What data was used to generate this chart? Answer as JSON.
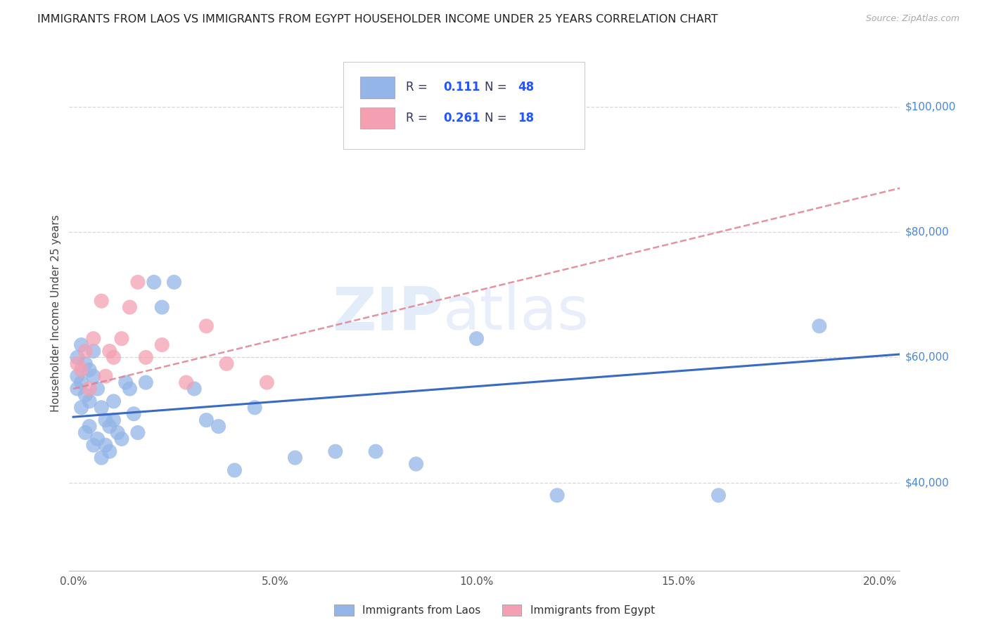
{
  "title": "IMMIGRANTS FROM LAOS VS IMMIGRANTS FROM EGYPT HOUSEHOLDER INCOME UNDER 25 YEARS CORRELATION CHART",
  "source": "Source: ZipAtlas.com",
  "xlabel_ticks": [
    "0.0%",
    "5.0%",
    "10.0%",
    "15.0%",
    "20.0%"
  ],
  "xlabel_tick_vals": [
    0.0,
    0.05,
    0.1,
    0.15,
    0.2
  ],
  "ylabel": "Householder Income Under 25 years",
  "ylabel_labels": [
    "$40,000",
    "$60,000",
    "$80,000",
    "$100,000"
  ],
  "ylabel_vals": [
    40000,
    60000,
    80000,
    100000
  ],
  "xlim": [
    -0.001,
    0.205
  ],
  "ylim": [
    26000,
    108000
  ],
  "laos_R": "0.111",
  "laos_N": "48",
  "egypt_R": "0.261",
  "egypt_N": "18",
  "laos_color": "#93b5e8",
  "egypt_color": "#f4a0b2",
  "laos_line_color": "#3a6bc4",
  "egypt_line_color": "#e08090",
  "watermark": "ZIPatlas",
  "legend_label_laos": "Immigrants from Laos",
  "legend_label_egypt": "Immigrants from Egypt",
  "background_color": "#ffffff",
  "grid_color": "#d8d8d8",
  "laos_x": [
    0.001,
    0.001,
    0.001,
    0.002,
    0.002,
    0.002,
    0.003,
    0.003,
    0.003,
    0.004,
    0.004,
    0.004,
    0.005,
    0.005,
    0.005,
    0.006,
    0.006,
    0.007,
    0.007,
    0.008,
    0.008,
    0.009,
    0.009,
    0.01,
    0.01,
    0.011,
    0.012,
    0.013,
    0.014,
    0.015,
    0.016,
    0.018,
    0.02,
    0.022,
    0.025,
    0.03,
    0.033,
    0.036,
    0.04,
    0.045,
    0.055,
    0.065,
    0.075,
    0.085,
    0.1,
    0.12,
    0.16,
    0.185
  ],
  "laos_y": [
    60000,
    57000,
    55000,
    62000,
    56000,
    52000,
    59000,
    54000,
    48000,
    58000,
    53000,
    49000,
    61000,
    57000,
    46000,
    55000,
    47000,
    52000,
    44000,
    50000,
    46000,
    49000,
    45000,
    50000,
    53000,
    48000,
    47000,
    56000,
    55000,
    51000,
    48000,
    56000,
    72000,
    68000,
    72000,
    55000,
    50000,
    49000,
    42000,
    52000,
    44000,
    45000,
    45000,
    43000,
    63000,
    38000,
    38000,
    65000
  ],
  "egypt_x": [
    0.001,
    0.002,
    0.003,
    0.004,
    0.005,
    0.007,
    0.008,
    0.009,
    0.01,
    0.012,
    0.014,
    0.016,
    0.018,
    0.022,
    0.028,
    0.033,
    0.038,
    0.048
  ],
  "egypt_y": [
    59000,
    58000,
    61000,
    55000,
    63000,
    69000,
    57000,
    61000,
    60000,
    63000,
    68000,
    72000,
    60000,
    62000,
    56000,
    65000,
    59000,
    56000
  ]
}
